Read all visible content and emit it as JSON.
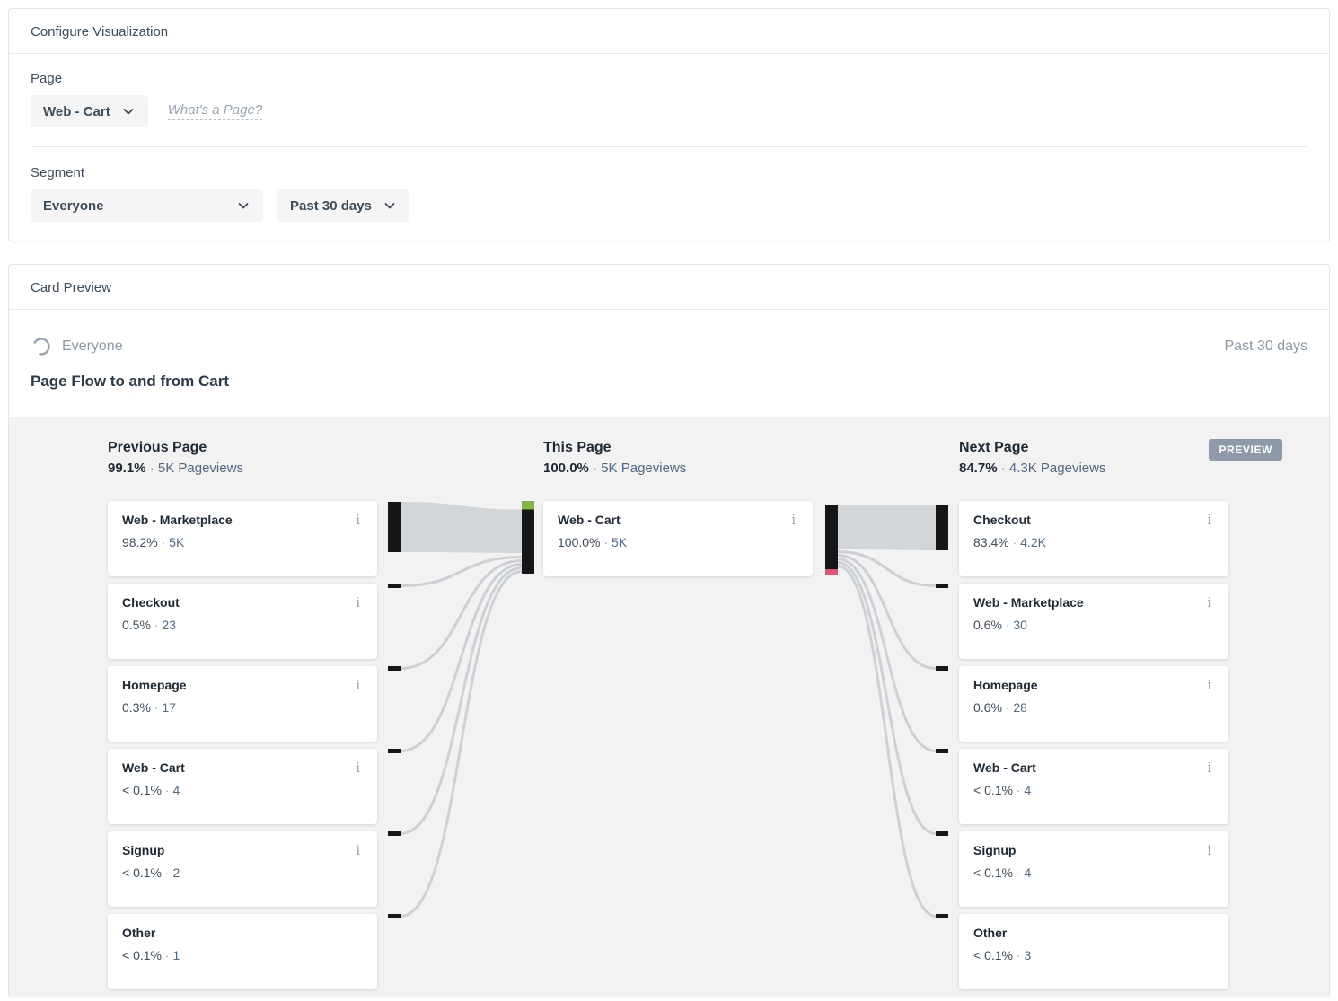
{
  "ui": {
    "dot": "·"
  },
  "colors": {
    "node": "#161616",
    "entry_green": "#7cb842",
    "exit_pink": "#e0527a",
    "ribbon": "#d2d6d9",
    "curve": "#cdd1d5",
    "flow_bg": "#f2f2f3",
    "badge_bg": "#8e9aa8"
  },
  "configure": {
    "title": "Configure Visualization",
    "page": {
      "label": "Page",
      "value": "Web - Cart",
      "help_link": "What's a Page?"
    },
    "segment": {
      "label": "Segment",
      "value": "Everyone"
    },
    "date_range": {
      "value": "Past 30 days"
    }
  },
  "preview": {
    "panel_title": "Card Preview",
    "segment": "Everyone",
    "date_range": "Past 30 days",
    "card_title": "Page Flow to and from Cart",
    "badge": "PREVIEW"
  },
  "chart_data": {
    "type": "sankey",
    "title": "Page Flow to and from Cart",
    "columns": [
      {
        "id": "previous",
        "title": "Previous Page",
        "percent": "99.1%",
        "pageviews": "5K Pageviews",
        "items": [
          {
            "name": "Web - Marketplace",
            "percent": "98.2%",
            "count": "5K",
            "info": true
          },
          {
            "name": "Checkout",
            "percent": "0.5%",
            "count": "23",
            "info": true
          },
          {
            "name": "Homepage",
            "percent": "0.3%",
            "count": "17",
            "info": true
          },
          {
            "name": "Web - Cart",
            "percent": "< 0.1%",
            "count": "4",
            "info": true
          },
          {
            "name": "Signup",
            "percent": "< 0.1%",
            "count": "2",
            "info": true
          },
          {
            "name": "Other",
            "percent": "< 0.1%",
            "count": "1",
            "info": false
          }
        ]
      },
      {
        "id": "this",
        "title": "This Page",
        "percent": "100.0%",
        "pageviews": "5K Pageviews",
        "items": [
          {
            "name": "Web - Cart",
            "percent": "100.0%",
            "count": "5K",
            "info": true
          }
        ]
      },
      {
        "id": "next",
        "title": "Next Page",
        "percent": "84.7%",
        "pageviews": "4.3K Pageviews",
        "items": [
          {
            "name": "Checkout",
            "percent": "83.4%",
            "count": "4.2K",
            "info": true
          },
          {
            "name": "Web - Marketplace",
            "percent": "0.6%",
            "count": "30",
            "info": true
          },
          {
            "name": "Homepage",
            "percent": "0.6%",
            "count": "28",
            "info": true
          },
          {
            "name": "Web - Cart",
            "percent": "< 0.1%",
            "count": "4",
            "info": true
          },
          {
            "name": "Signup",
            "percent": "< 0.1%",
            "count": "4",
            "info": true
          },
          {
            "name": "Other",
            "percent": "< 0.1%",
            "count": "3",
            "info": false
          }
        ]
      }
    ]
  }
}
